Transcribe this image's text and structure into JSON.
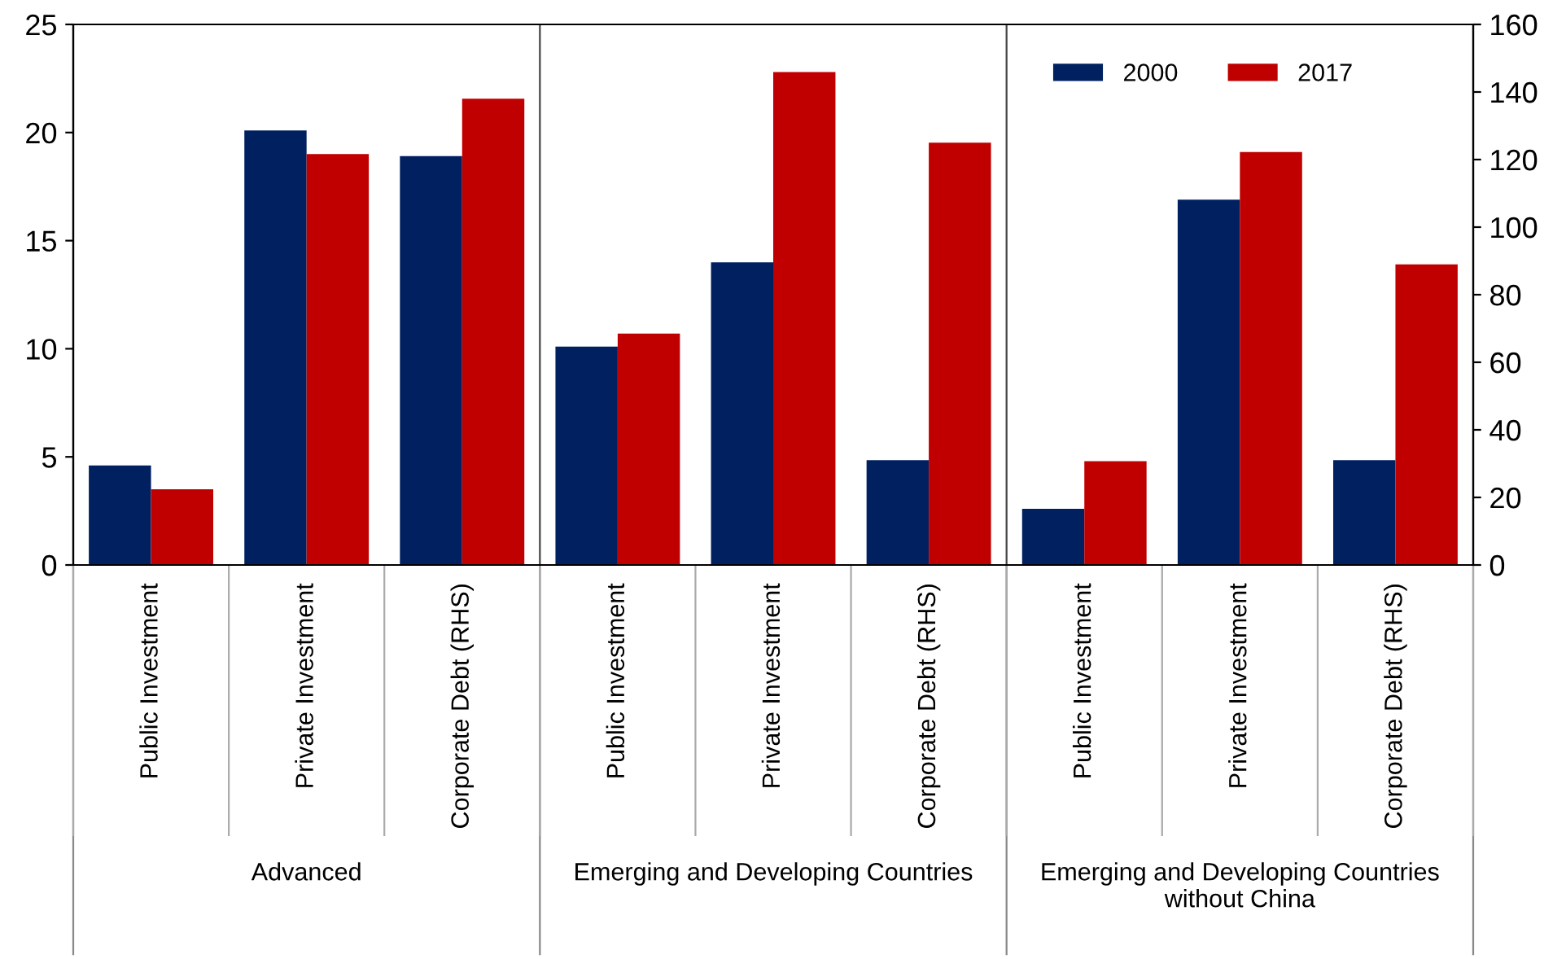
{
  "chart_data": {
    "type": "bar",
    "categories": [
      "Public Investment",
      "Private Investment",
      "Corporate Debt (RHS)",
      "Public Investment",
      "Private Investment",
      "Corporate Debt (RHS)",
      "Public Investment",
      "Private Investment",
      "Corporate Debt (RHS)"
    ],
    "series": [
      {
        "name": "2000",
        "color": "#002060",
        "values": [
          4.6,
          20.1,
          null,
          10.1,
          14.0,
          null,
          2.6,
          16.9,
          null
        ]
      },
      {
        "name": "2017",
        "color": "#c00000",
        "values": [
          3.5,
          19.0,
          null,
          10.7,
          22.8,
          null,
          4.8,
          19.1,
          null
        ]
      },
      {
        "color": "#002060",
        "axis": "y2",
        "values": [
          null,
          null,
          121,
          null,
          null,
          31,
          null,
          null,
          31
        ]
      },
      {
        "color": "#c00000",
        "axis": "y2",
        "values": [
          null,
          null,
          138,
          null,
          null,
          125,
          null,
          null,
          89
        ]
      }
    ],
    "ylim": [
      0,
      25
    ],
    "yticks": [
      0,
      5,
      10,
      15,
      20,
      25
    ],
    "y2lim": [
      0,
      160
    ],
    "y2ticks": [
      0,
      20,
      40,
      60,
      80,
      100,
      120,
      140,
      160
    ],
    "annotations": [
      "Advanced",
      "Emerging and Developing Countries",
      "Emerging and Developing Countries without China"
    ],
    "legend": "top right",
    "grid": false
  }
}
